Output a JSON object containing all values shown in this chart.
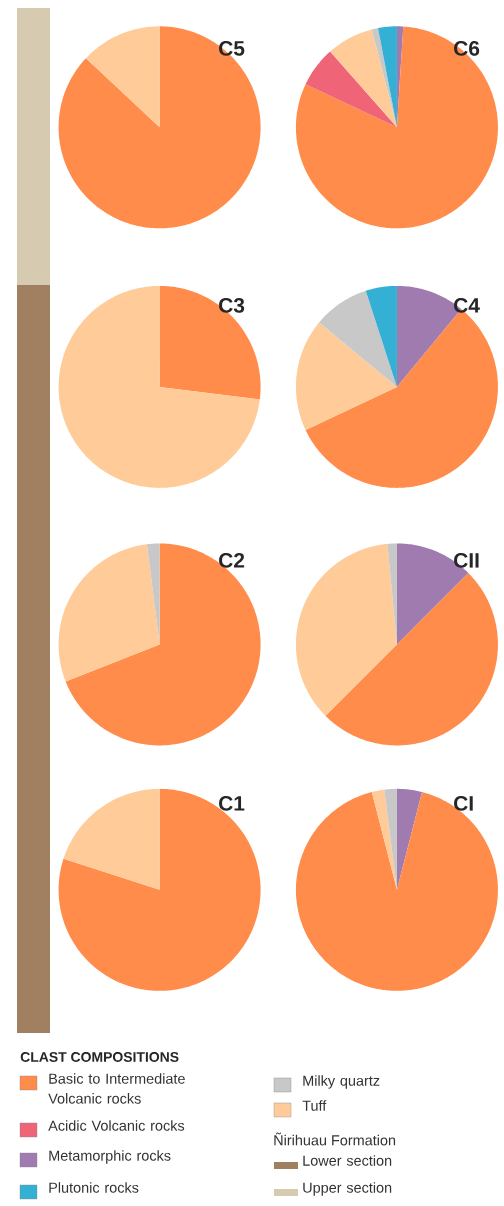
{
  "chart_data": [
    {
      "type": "pie",
      "title": "C5",
      "categories": [
        null,
        null
      ],
      "values": [
        87,
        13
      ],
      "colors": [
        "#ff8c4a",
        "#ffcc99"
      ]
    },
    {
      "type": "pie",
      "title": "C6",
      "categories": [
        null,
        null,
        null,
        null,
        null,
        null
      ],
      "values": [
        1,
        81,
        6.5,
        7.5,
        1,
        3
      ],
      "colors": [
        "#a07bb0",
        "#ff8c4a",
        "#f06477",
        "#ffcc99",
        "#c8c8c8",
        "#33b0d4"
      ]
    },
    {
      "type": "pie",
      "title": "C3",
      "categories": [
        null,
        null
      ],
      "values": [
        27,
        73
      ],
      "colors": [
        "#ff8c4a",
        "#ffcc99"
      ]
    },
    {
      "type": "pie",
      "title": "C4",
      "categories": [
        null,
        null,
        null,
        null,
        null
      ],
      "values": [
        11,
        57,
        18,
        9,
        5
      ],
      "colors": [
        "#a07bb0",
        "#ff8c4a",
        "#ffcc99",
        "#c8c8c8",
        "#33b0d4"
      ]
    },
    {
      "type": "pie",
      "title": "C2",
      "categories": [
        null,
        null,
        null
      ],
      "values": [
        69,
        29,
        2
      ],
      "colors": [
        "#ff8c4a",
        "#ffcc99",
        "#c8c8c8"
      ]
    },
    {
      "type": "pie",
      "title": "CII",
      "categories": [
        null,
        null,
        null,
        null
      ],
      "values": [
        12.5,
        50,
        36,
        1.5
      ],
      "colors": [
        "#a07bb0",
        "#ff8c4a",
        "#ffcc99",
        "#c8c8c8"
      ]
    },
    {
      "type": "pie",
      "title": "C1",
      "categories": [
        null,
        null
      ],
      "values": [
        80,
        20
      ],
      "colors": [
        "#ff8c4a",
        "#ffcc99"
      ]
    },
    {
      "type": "pie",
      "title": "CI",
      "categories": [
        null,
        null,
        null,
        null
      ],
      "values": [
        4,
        92,
        2,
        2
      ],
      "colors": [
        "#a07bb0",
        "#ff8c4a",
        "#ffcc99",
        "#c8c8c8"
      ]
    },
    {
      "type": "other",
      "title": "CLAST COMPOSITIONS",
      "categories": [
        "Basic to Intermediate Volcanic rocks",
        "Acidic Volcanic rocks",
        "Metamorphic rocks",
        "Plutonic rocks",
        "Milky quartz",
        "Tuff",
        "Lower section",
        "Upper section"
      ],
      "colors": [
        "#ff8c4a",
        "#f06477",
        "#a07bb0",
        "#33b0d4",
        "#c8c8c8",
        "#ffcc99",
        "#a08060",
        "#d6cbb0"
      ],
      "annotations": [
        "Ñirihuau Formation"
      ]
    }
  ]
}
